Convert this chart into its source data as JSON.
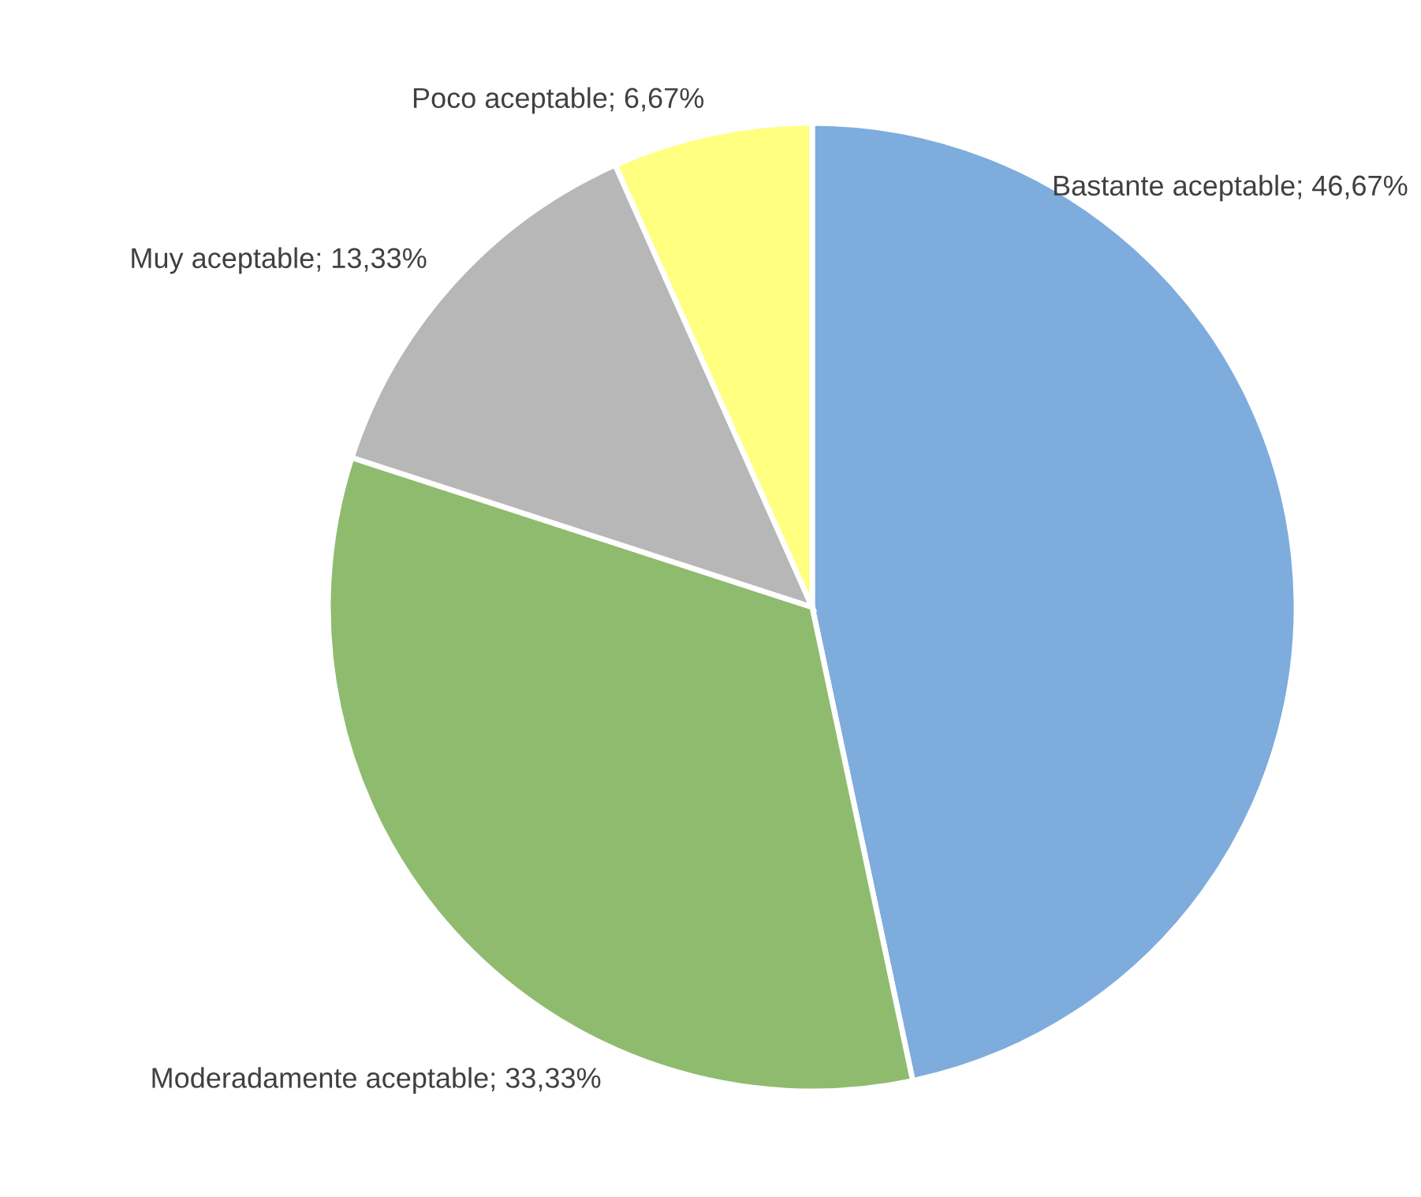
{
  "chart_data": {
    "type": "pie",
    "categories": [
      "Bastante aceptable",
      "Moderadamente aceptable",
      "Muy aceptable",
      "Poco aceptable"
    ],
    "values": [
      46.67,
      33.33,
      13.33,
      6.67
    ],
    "value_labels": [
      "46,67%",
      "33,33%",
      "13,33%",
      "6,67%"
    ],
    "colors": [
      "#7eacdc",
      "#8fbb6e",
      "#b7b7b7",
      "#ffff80"
    ],
    "legend": false
  }
}
